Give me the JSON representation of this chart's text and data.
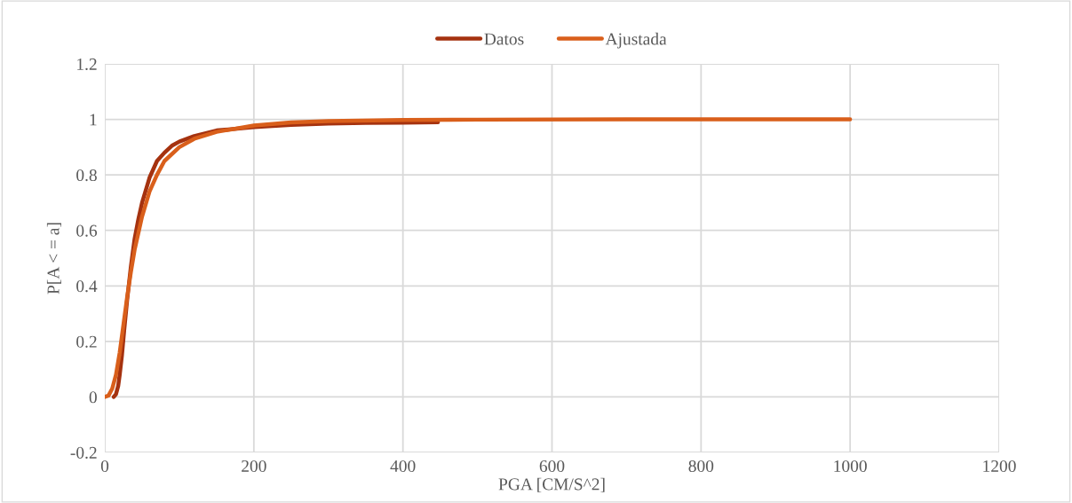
{
  "chart_data": {
    "type": "line",
    "xlabel": "PGA [CM/S^2]",
    "ylabel": "P[A < = a]",
    "xlim": [
      0,
      1200
    ],
    "xticks": [
      0,
      200,
      400,
      600,
      800,
      1000,
      1200
    ],
    "ylim": [
      -0.2,
      1.2
    ],
    "yticks": [
      -0.2,
      0,
      0.2,
      0.4,
      0.6,
      0.8,
      1,
      1.2
    ],
    "grid": true,
    "legend": "top",
    "marker": "none",
    "line_style": "solid",
    "series": [
      {
        "name": "Datos",
        "color": "#a5320f",
        "x": [
          12,
          15,
          18,
          20,
          23,
          26,
          30,
          35,
          40,
          45,
          50,
          60,
          70,
          80,
          90,
          100,
          120,
          150,
          200,
          250,
          300,
          350,
          400,
          447
        ],
        "values": [
          0,
          0.01,
          0.04,
          0.08,
          0.15,
          0.24,
          0.35,
          0.47,
          0.57,
          0.64,
          0.7,
          0.79,
          0.85,
          0.88,
          0.905,
          0.92,
          0.94,
          0.96,
          0.972,
          0.98,
          0.985,
          0.987,
          0.988,
          0.99
        ]
      },
      {
        "name": "Ajustada",
        "color": "#d95f1b",
        "x": [
          0,
          5,
          10,
          15,
          20,
          25,
          30,
          35,
          40,
          50,
          60,
          70,
          80,
          100,
          120,
          150,
          200,
          250,
          300,
          400,
          500,
          700,
          1000
        ],
        "values": [
          0,
          0.005,
          0.03,
          0.08,
          0.16,
          0.26,
          0.36,
          0.45,
          0.53,
          0.65,
          0.74,
          0.8,
          0.85,
          0.9,
          0.93,
          0.955,
          0.978,
          0.989,
          0.994,
          0.998,
          0.999,
          1,
          1
        ]
      }
    ]
  }
}
